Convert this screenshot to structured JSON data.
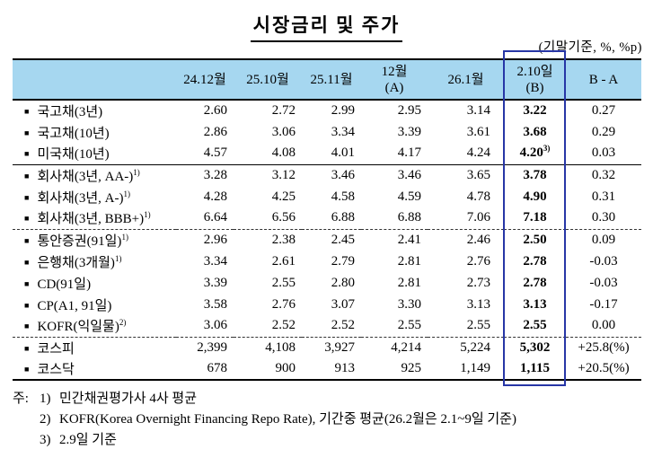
{
  "title": "시장금리 및 주가",
  "unit_caption": "(기말기준, %, %p)",
  "colors": {
    "header_bg": "#A6D7F0",
    "highlight_box_border": "#2736A6",
    "text": "#000000"
  },
  "table": {
    "columns": [
      {
        "line1": "",
        "line2": ""
      },
      {
        "line1": "24.12월"
      },
      {
        "line1": "25.10월"
      },
      {
        "line1": "25.11월"
      },
      {
        "line1": "12월",
        "line2": "(A)"
      },
      {
        "line1": "26.1월"
      },
      {
        "line1": "2.10일",
        "line2": "(B)"
      },
      {
        "line1": "B - A"
      }
    ],
    "highlighted_column": "2.10일(B)",
    "rows": [
      {
        "label": "국고채(3년)",
        "label_sup": "",
        "values": [
          "2.60",
          "2.72",
          "2.99",
          "2.95",
          "3.14"
        ],
        "b_value": "3.22",
        "b_sup": "",
        "ba_value": "0.27",
        "separator": ""
      },
      {
        "label": "국고채(10년)",
        "label_sup": "",
        "values": [
          "2.86",
          "3.06",
          "3.34",
          "3.39",
          "3.61"
        ],
        "b_value": "3.68",
        "b_sup": "",
        "ba_value": "0.29",
        "separator": ""
      },
      {
        "label": "미국채(10년)",
        "label_sup": "",
        "values": [
          "4.57",
          "4.08",
          "4.01",
          "4.17",
          "4.24"
        ],
        "b_value": "4.20",
        "b_sup": "3)",
        "ba_value": "0.03",
        "separator": ""
      },
      {
        "label": "회사채(3년, AA-)",
        "label_sup": "1)",
        "values": [
          "3.28",
          "3.12",
          "3.46",
          "3.46",
          "3.65"
        ],
        "b_value": "3.78",
        "b_sup": "",
        "ba_value": "0.32",
        "separator": "solid"
      },
      {
        "label": "회사채(3년, A-)",
        "label_sup": "1)",
        "values": [
          "4.28",
          "4.25",
          "4.58",
          "4.59",
          "4.78"
        ],
        "b_value": "4.90",
        "b_sup": "",
        "ba_value": "0.31",
        "separator": ""
      },
      {
        "label": "회사채(3년, BBB+)",
        "label_sup": "1)",
        "values": [
          "6.64",
          "6.56",
          "6.88",
          "6.88",
          "7.06"
        ],
        "b_value": "7.18",
        "b_sup": "",
        "ba_value": "0.30",
        "separator": ""
      },
      {
        "label": "통안증권(91일)",
        "label_sup": "1)",
        "values": [
          "2.96",
          "2.38",
          "2.45",
          "2.41",
          "2.46"
        ],
        "b_value": "2.50",
        "b_sup": "",
        "ba_value": "0.09",
        "separator": "dashed"
      },
      {
        "label": "은행채(3개월)",
        "label_sup": "1)",
        "values": [
          "3.34",
          "2.61",
          "2.79",
          "2.81",
          "2.76"
        ],
        "b_value": "2.78",
        "b_sup": "",
        "ba_value": "-0.03",
        "separator": ""
      },
      {
        "label": "CD(91일)",
        "label_sup": "",
        "values": [
          "3.39",
          "2.55",
          "2.80",
          "2.81",
          "2.73"
        ],
        "b_value": "2.78",
        "b_sup": "",
        "ba_value": "-0.03",
        "separator": ""
      },
      {
        "label": "CP(A1, 91일)",
        "label_sup": "",
        "values": [
          "3.58",
          "2.76",
          "3.07",
          "3.30",
          "3.13"
        ],
        "b_value": "3.13",
        "b_sup": "",
        "ba_value": "-0.17",
        "separator": ""
      },
      {
        "label": "KOFR(익일물)",
        "label_sup": "2)",
        "values": [
          "3.06",
          "2.52",
          "2.52",
          "2.55",
          "2.55"
        ],
        "b_value": "2.55",
        "b_sup": "",
        "ba_value": "0.00",
        "separator": ""
      },
      {
        "label": "코스피",
        "label_sup": "",
        "values": [
          "2,399",
          "4,108",
          "3,927",
          "4,214",
          "5,224"
        ],
        "b_value": "5,302",
        "b_sup": "",
        "ba_value": "+25.8(%)",
        "separator": "dashed"
      },
      {
        "label": "코스닥",
        "label_sup": "",
        "values": [
          "678",
          "900",
          "913",
          "925",
          "1,149"
        ],
        "b_value": "1,115",
        "b_sup": "",
        "ba_value": "+20.5(%)",
        "separator": ""
      }
    ]
  },
  "notes": {
    "prefix": "주:",
    "items": [
      {
        "num": "1)",
        "text": "민간채권평가사 4사 평균"
      },
      {
        "num": "2)",
        "text": "KOFR(Korea Overnight Financing Repo Rate), 기간중 평균(26.2월은 2.1~9일 기준)"
      },
      {
        "num": "3)",
        "text": "2.9일 기준"
      }
    ]
  }
}
